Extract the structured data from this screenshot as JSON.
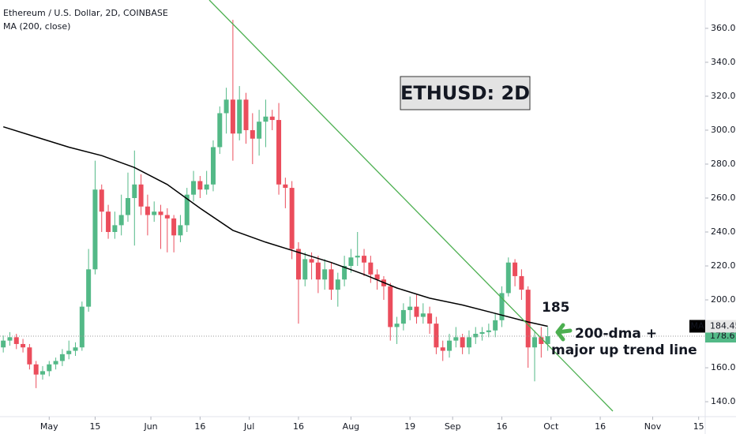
{
  "chart_data": {
    "type": "candlestick",
    "title": "Ethereum / U.S. Dollar, 2D, COINBASE",
    "indicator_label": "MA (200, close)",
    "annotation_box": "ETHUSD: 2D",
    "annotations": [
      "185",
      "200-dma +",
      "major up trend line"
    ],
    "up_color": "#53b987",
    "down_color": "#eb4d5c",
    "x": [
      107,
      109,
      111,
      113,
      115,
      117,
      119,
      121,
      123,
      125,
      127,
      129,
      131,
      133,
      135,
      137,
      139,
      141,
      143,
      145,
      147,
      149,
      151,
      153,
      155,
      157,
      159,
      161,
      163,
      165,
      167,
      169,
      171,
      173,
      175,
      177,
      179,
      181,
      183,
      185,
      187,
      189,
      191,
      193,
      195,
      197,
      199,
      201,
      203,
      205,
      207,
      209,
      211,
      213,
      215,
      217,
      219,
      221,
      223,
      225,
      227,
      229,
      231,
      233,
      235,
      237,
      239,
      241,
      243,
      245,
      247,
      249,
      251,
      253,
      255,
      257,
      259,
      261,
      263,
      265,
      267,
      269,
      271,
      273
    ],
    "open": [
      172,
      176,
      178,
      174,
      172,
      162,
      156,
      158,
      162,
      164,
      168,
      170,
      172,
      196,
      218,
      265,
      252,
      240,
      244,
      250,
      260,
      268,
      255,
      250,
      252,
      250,
      248,
      238,
      244,
      262,
      270,
      265,
      268,
      290,
      310,
      318,
      298,
      318,
      300,
      295,
      305,
      308,
      306,
      268,
      266,
      230,
      212,
      224,
      222,
      212,
      218,
      206,
      212,
      220,
      225,
      226,
      222,
      215,
      212,
      208,
      184,
      186,
      194,
      196,
      190,
      192,
      186,
      172,
      170,
      176,
      178,
      172,
      178,
      180,
      181,
      182,
      188,
      204,
      222,
      214,
      206,
      172,
      178,
      174
    ],
    "high": [
      179,
      181,
      180,
      177,
      174,
      164,
      161,
      164,
      166,
      171,
      176,
      175,
      199,
      230,
      282,
      268,
      256,
      252,
      262,
      275,
      288,
      274,
      262,
      258,
      256,
      254,
      250,
      250,
      266,
      276,
      273,
      276,
      294,
      314,
      325,
      365,
      326,
      322,
      310,
      312,
      318,
      312,
      316,
      272,
      270,
      234,
      228,
      228,
      226,
      224,
      222,
      216,
      226,
      230,
      240,
      230,
      226,
      218,
      214,
      210,
      190,
      198,
      202,
      203,
      198,
      196,
      190,
      176,
      180,
      184,
      180,
      182,
      184,
      184,
      186,
      192,
      208,
      225,
      224,
      218,
      208,
      182,
      184,
      184
    ],
    "low": [
      169,
      173,
      171,
      169,
      159,
      148,
      153,
      155,
      159,
      161,
      165,
      167,
      170,
      193,
      215,
      240,
      236,
      236,
      238,
      246,
      232,
      250,
      238,
      246,
      230,
      228,
      228,
      234,
      240,
      258,
      260,
      262,
      264,
      286,
      298,
      282,
      294,
      292,
      280,
      285,
      290,
      300,
      262,
      254,
      224,
      186,
      208,
      212,
      204,
      206,
      200,
      196,
      208,
      216,
      220,
      214,
      210,
      206,
      200,
      176,
      174,
      182,
      188,
      186,
      186,
      180,
      168,
      164,
      166,
      172,
      168,
      168,
      174,
      176,
      178,
      178,
      184,
      202,
      208,
      200,
      160,
      152,
      166,
      170
    ],
    "close": [
      176,
      178,
      174,
      172,
      162,
      156,
      158,
      162,
      164,
      168,
      170,
      172,
      196,
      218,
      265,
      252,
      240,
      244,
      250,
      260,
      268,
      255,
      250,
      252,
      250,
      248,
      238,
      244,
      262,
      270,
      265,
      268,
      290,
      310,
      318,
      298,
      318,
      300,
      295,
      305,
      308,
      306,
      268,
      266,
      230,
      212,
      224,
      222,
      212,
      218,
      206,
      212,
      220,
      225,
      226,
      222,
      215,
      212,
      208,
      184,
      186,
      194,
      196,
      190,
      192,
      186,
      172,
      170,
      176,
      178,
      172,
      178,
      180,
      181,
      182,
      188,
      204,
      222,
      214,
      206,
      172,
      178,
      174,
      178.61
    ],
    "ma": {
      "name": "MA",
      "color": "#000000",
      "x": [
        107,
        117,
        127,
        137,
        147,
        157,
        167,
        177,
        187,
        197,
        207,
        217,
        227,
        237,
        247,
        257,
        267,
        273
      ],
      "values": [
        302,
        296,
        290,
        285,
        278,
        268,
        254,
        241,
        234,
        228,
        222,
        215,
        207,
        201,
        197,
        192,
        187,
        184.45
      ]
    },
    "xlim": [
      106,
      321
    ],
    "xticks": [
      {
        "value": 121,
        "label": "May"
      },
      {
        "value": 135,
        "label": "15"
      },
      {
        "value": 152,
        "label": "Jun"
      },
      {
        "value": 167,
        "label": "16"
      },
      {
        "value": 182,
        "label": "Jul"
      },
      {
        "value": 197,
        "label": "16"
      },
      {
        "value": 213,
        "label": "Aug"
      },
      {
        "value": 231,
        "label": "19"
      },
      {
        "value": 244,
        "label": "Sep"
      },
      {
        "value": 259,
        "label": "16"
      },
      {
        "value": 274,
        "label": "Oct"
      },
      {
        "value": 289,
        "label": "16"
      },
      {
        "value": 305,
        "label": "Nov"
      },
      {
        "value": 319,
        "label": "15"
      }
    ],
    "ylim": [
      131.2,
      376.7
    ],
    "yticks": [
      {
        "value": 140,
        "label": "140.00"
      },
      {
        "value": 160,
        "label": "160.00"
      },
      {
        "value": 180,
        "label": "180.00"
      },
      {
        "value": 200,
        "label": "200.00"
      },
      {
        "value": 220,
        "label": "220.00"
      },
      {
        "value": 240,
        "label": "240.00"
      },
      {
        "value": 260,
        "label": "260.00"
      },
      {
        "value": 280,
        "label": "280.00"
      },
      {
        "value": 300,
        "label": "300.00"
      },
      {
        "value": 320,
        "label": "320.00"
      },
      {
        "value": 340,
        "label": "340.00"
      },
      {
        "value": 360,
        "label": "360.00"
      }
    ],
    "grid": false
  }
}
